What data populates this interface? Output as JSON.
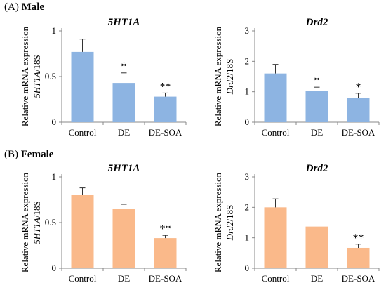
{
  "sections": [
    {
      "tag": "(A)",
      "name": "Male"
    },
    {
      "tag": "(B)",
      "name": "Female"
    }
  ],
  "chart_data": [
    {
      "type": "bar",
      "section": "Male",
      "title": "5HT1A",
      "title_italic": true,
      "ylabel_top": "Relative mRNA expression",
      "ylabel_bottom_italic": "5HT1A",
      "ylabel_bottom_rest": "/18S",
      "categories": [
        "Control",
        "DE",
        "DE-SOA"
      ],
      "values": [
        0.77,
        0.43,
        0.28
      ],
      "errors": [
        0.14,
        0.11,
        0.04
      ],
      "significance": [
        "",
        "*",
        "**"
      ],
      "ylim": [
        0,
        1
      ],
      "yticks": [
        0,
        0.5,
        1
      ],
      "ytick_labels": [
        "0",
        "0.5",
        "1"
      ],
      "color": "#8db4e2",
      "grid": false
    },
    {
      "type": "bar",
      "section": "Male",
      "title": "Drd2",
      "title_italic": true,
      "ylabel_top": "Relative mRNA expression",
      "ylabel_bottom_italic": "Drd2",
      "ylabel_bottom_rest": "/18S",
      "categories": [
        "Control",
        "DE",
        "DE-SOA"
      ],
      "values": [
        1.6,
        1.02,
        0.8
      ],
      "errors": [
        0.3,
        0.13,
        0.15
      ],
      "significance": [
        "",
        "*",
        "*"
      ],
      "ylim": [
        0,
        3
      ],
      "yticks": [
        0,
        1,
        2,
        3
      ],
      "ytick_labels": [
        "0",
        "1",
        "2",
        "3"
      ],
      "color": "#8db4e2",
      "grid": false
    },
    {
      "type": "bar",
      "section": "Female",
      "title": "5HT1A",
      "title_italic": true,
      "ylabel_top": "Relative mRNA expression",
      "ylabel_bottom_italic": "5HT1A",
      "ylabel_bottom_rest": "/18S",
      "categories": [
        "Control",
        "DE",
        "DE-SOA"
      ],
      "values": [
        0.8,
        0.65,
        0.33
      ],
      "errors": [
        0.08,
        0.05,
        0.03
      ],
      "significance": [
        "",
        "",
        "**"
      ],
      "ylim": [
        0,
        1
      ],
      "yticks": [
        0,
        0.5,
        1
      ],
      "ytick_labels": [
        "0",
        "0.5",
        "1"
      ],
      "color": "#fab98a",
      "grid": false
    },
    {
      "type": "bar",
      "section": "Female",
      "title": "Drd2",
      "title_italic": true,
      "ylabel_top": "Relative mRNA expression",
      "ylabel_bottom_italic": "Drd2",
      "ylabel_bottom_rest": "/18S",
      "categories": [
        "Control",
        "DE",
        "DE-SOA"
      ],
      "values": [
        2.0,
        1.37,
        0.67
      ],
      "errors": [
        0.28,
        0.28,
        0.12
      ],
      "significance": [
        "",
        "",
        "**"
      ],
      "ylim": [
        0,
        3
      ],
      "yticks": [
        0,
        1,
        2,
        3
      ],
      "ytick_labels": [
        "0",
        "1",
        "2",
        "3"
      ],
      "color": "#fab98a",
      "grid": false
    }
  ]
}
